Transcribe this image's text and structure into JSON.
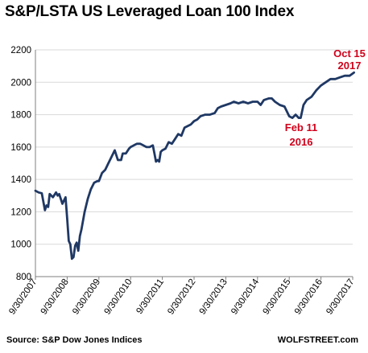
{
  "chart_data": {
    "type": "line",
    "title": "S&P/LSTA US Leveraged Loan 100 Index",
    "xlabel": "",
    "ylabel": "",
    "ylim": [
      800,
      2200
    ],
    "y_ticks": [
      "800",
      "1000",
      "1200",
      "1400",
      "1600",
      "1800",
      "2000",
      "2200"
    ],
    "x_ticks": [
      "9/30/2007",
      "9/30/2008",
      "9/30/2009",
      "9/30/2010",
      "9/30/2011",
      "9/30/2012",
      "9/30/2013",
      "9/30/2014",
      "9/30/2015",
      "9/30/2016",
      "9/30/2017"
    ],
    "grid": "horizontal",
    "line_color": "#1f3864",
    "annotation_color": "#d0021b",
    "series": [
      {
        "x": [
          2007.75,
          2007.85,
          2007.95,
          2008.05,
          2008.1,
          2008.15,
          2008.2,
          2008.3,
          2008.4,
          2008.45,
          2008.5,
          2008.6,
          2008.7,
          2008.75,
          2008.8,
          2008.85,
          2008.9,
          2008.95,
          2009.0,
          2009.05,
          2009.1,
          2009.15,
          2009.2,
          2009.3,
          2009.4,
          2009.5,
          2009.6,
          2009.7,
          2009.75,
          2009.85,
          2009.95,
          2010.05,
          2010.15,
          2010.25,
          2010.35,
          2010.45,
          2010.5,
          2010.6,
          2010.7,
          2010.75,
          2010.85,
          2010.95,
          2011.05,
          2011.15,
          2011.25,
          2011.35,
          2011.45,
          2011.5,
          2011.55,
          2011.6,
          2011.65,
          2011.7,
          2011.75,
          2011.85,
          2011.95,
          2012.05,
          2012.15,
          2012.25,
          2012.35,
          2012.45,
          2012.55,
          2012.65,
          2012.75,
          2012.85,
          2012.95,
          2013.1,
          2013.25,
          2013.4,
          2013.5,
          2013.6,
          2013.75,
          2013.9,
          2014.0,
          2014.15,
          2014.3,
          2014.45,
          2014.6,
          2014.75,
          2014.85,
          2014.95,
          2015.1,
          2015.2,
          2015.3,
          2015.45,
          2015.6,
          2015.75,
          2015.85,
          2015.95,
          2016.05,
          2016.11,
          2016.2,
          2016.3,
          2016.45,
          2016.6,
          2016.75,
          2016.9,
          2017.05,
          2017.2,
          2017.35,
          2017.5,
          2017.65,
          2017.79
        ],
        "y": [
          1330,
          1320,
          1315,
          1210,
          1240,
          1230,
          1310,
          1290,
          1320,
          1300,
          1310,
          1250,
          1290,
          1160,
          1020,
          1000,
          910,
          920,
          990,
          1010,
          960,
          1050,
          1090,
          1200,
          1280,
          1340,
          1380,
          1390,
          1390,
          1440,
          1460,
          1500,
          1540,
          1580,
          1520,
          1520,
          1560,
          1560,
          1590,
          1600,
          1610,
          1620,
          1620,
          1610,
          1600,
          1600,
          1610,
          1560,
          1510,
          1520,
          1510,
          1570,
          1580,
          1590,
          1630,
          1620,
          1650,
          1680,
          1670,
          1720,
          1730,
          1740,
          1760,
          1770,
          1790,
          1800,
          1800,
          1810,
          1840,
          1850,
          1860,
          1870,
          1880,
          1870,
          1880,
          1870,
          1880,
          1880,
          1860,
          1890,
          1900,
          1900,
          1880,
          1860,
          1850,
          1790,
          1780,
          1800,
          1780,
          1780,
          1860,
          1890,
          1910,
          1950,
          1980,
          2000,
          2020,
          2020,
          2030,
          2040,
          2040,
          2060
        ]
      }
    ],
    "annotations": [
      {
        "line1": "Oct 15",
        "line2": "2017"
      },
      {
        "line1": "Feb 11",
        "line2": "2016"
      }
    ]
  },
  "footer": {
    "source": "Source: S&P Dow Jones Indices",
    "credit": "WOLFSTREET.com"
  }
}
